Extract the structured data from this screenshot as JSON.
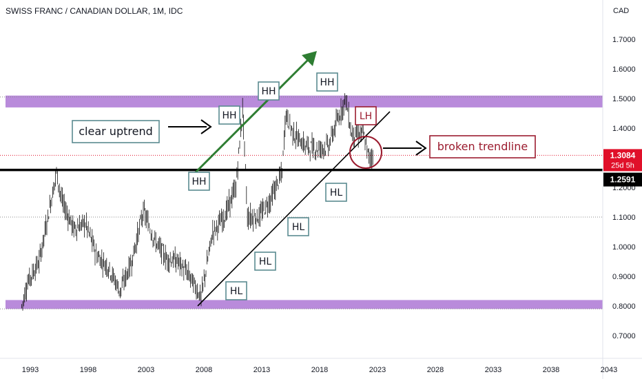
{
  "header": {
    "title": "SWISS FRANC / CANADIAN DOLLAR, 1M, IDC"
  },
  "axis": {
    "currency": "CAD",
    "yticks": [
      "1.7000",
      "1.6000",
      "1.5000",
      "1.4000",
      "1.3000",
      "1.2000",
      "1.1000",
      "1.0000",
      "0.9000",
      "0.8000",
      "0.7000"
    ],
    "xticks": [
      "1993",
      "1998",
      "2003",
      "2008",
      "2013",
      "2018",
      "2023",
      "2028",
      "2033",
      "2038",
      "2043"
    ]
  },
  "price": {
    "current": "1.3084",
    "countdown": "25d 5h",
    "level": "1.2591",
    "current_color": "#e0102a",
    "level_color": "#000000"
  },
  "colors": {
    "zone": "#b98bdb",
    "arrow_green": "#2e7d32",
    "label_border": "#5a8a90",
    "lh_color": "#9b1b2e"
  },
  "annotations": {
    "clear_uptrend": "clear uptrend",
    "broken_trendline": "broken trendline",
    "hh": "HH",
    "hl": "HL",
    "lh": "LH"
  },
  "chart_data": {
    "type": "candlestick",
    "title": "SWISS FRANC / CANADIAN DOLLAR, 1M, IDC",
    "ylabel": "CAD",
    "ylim": [
      0.65,
      1.8
    ],
    "xlim": [
      1991,
      2044
    ],
    "grid": false,
    "series": [
      {
        "x": [
          1992.5,
          1993,
          1994,
          1995,
          1995.5,
          1996,
          1997,
          1998,
          1999,
          2000,
          2001,
          2002,
          2003,
          2004,
          2005,
          2006,
          2007,
          2008,
          2009,
          2010,
          2011,
          2011.6,
          2012,
          2013,
          2014,
          2015,
          2015.3,
          2016,
          2017,
          2018,
          2019,
          2020,
          2020.5,
          2021,
          2022,
          2022.5,
          2022.9
        ],
        "y": [
          0.8,
          0.88,
          0.95,
          1.15,
          1.25,
          1.15,
          1.06,
          1.08,
          0.97,
          0.93,
          0.85,
          0.95,
          1.12,
          1.02,
          0.96,
          0.95,
          0.9,
          0.83,
          1.05,
          1.1,
          1.2,
          1.47,
          1.1,
          1.1,
          1.16,
          1.25,
          1.45,
          1.38,
          1.34,
          1.33,
          1.34,
          1.45,
          1.5,
          1.38,
          1.38,
          1.3,
          1.3084
        ]
      }
    ],
    "levels": [
      1.2591
    ],
    "zones": [
      [
        1.47,
        1.51
      ],
      [
        0.79,
        0.82
      ]
    ]
  }
}
